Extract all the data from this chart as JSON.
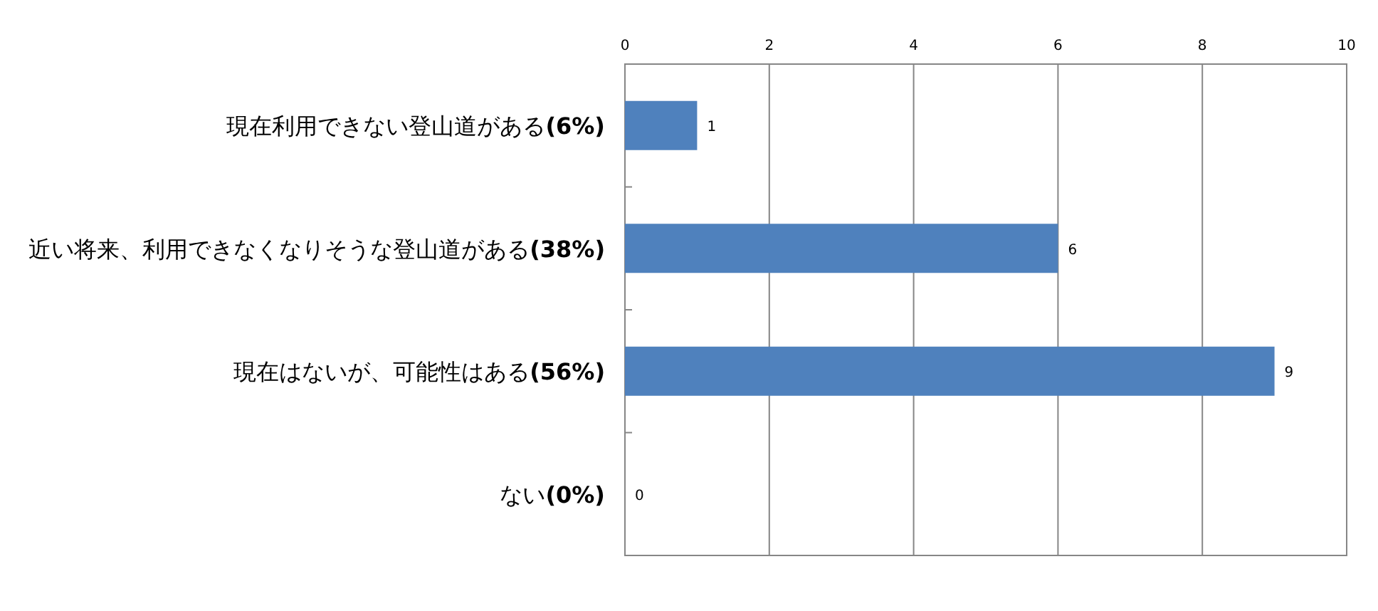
{
  "chart_data": {
    "type": "bar",
    "orientation": "horizontal",
    "categories": [
      "現在利用できない登山道がある**(6%)**",
      "近い将来、利用できなくなりそうな登山道がある**(38%)**",
      "現在はないが、可能性はある**(56%)**",
      "ない**(0%)**"
    ],
    "values": [
      1,
      6,
      9,
      0
    ],
    "color": "#4f81bd",
    "xlim": [
      0,
      10
    ],
    "xticks": [
      0,
      2,
      4,
      6,
      8,
      10
    ],
    "grid": "x",
    "data_labels": true
  }
}
